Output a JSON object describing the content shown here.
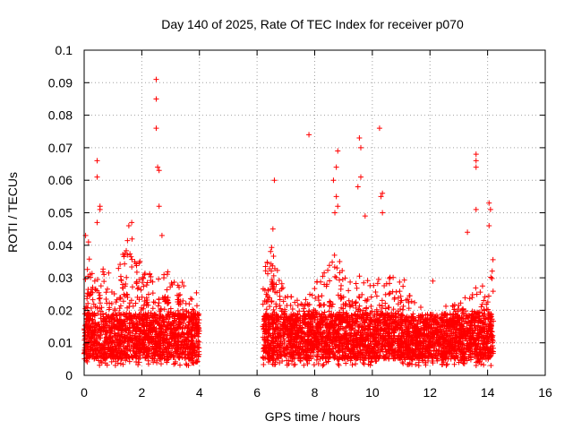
{
  "chart_data": {
    "type": "scatter",
    "title": "Day 140 of 2025, Rate Of TEC Index for receiver p070",
    "xlabel": "GPS time / hours",
    "ylabel": "ROTI / TECUs",
    "xlim": [
      0,
      16
    ],
    "ylim": [
      0,
      0.1
    ],
    "x_ticks": [
      "0",
      "2",
      "4",
      "6",
      "8",
      "10",
      "12",
      "14",
      "16"
    ],
    "y_ticks": [
      "0",
      "0.01",
      "0.02",
      "0.03",
      "0.04",
      "0.05",
      "0.06",
      "0.07",
      "0.08",
      "0.09",
      "0.1"
    ],
    "grid": true,
    "marker": "plus",
    "color": "#ff0000",
    "segments": [
      {
        "x_start": 0.0,
        "x_end": 4.0
      },
      {
        "x_start": 6.2,
        "x_end": 14.2
      }
    ],
    "envelope": [
      {
        "x": 0.0,
        "y": 0.03
      },
      {
        "x": 0.25,
        "y": 0.036
      },
      {
        "x": 0.5,
        "y": 0.035
      },
      {
        "x": 0.75,
        "y": 0.03
      },
      {
        "x": 1.0,
        "y": 0.031
      },
      {
        "x": 1.25,
        "y": 0.033
      },
      {
        "x": 1.5,
        "y": 0.04
      },
      {
        "x": 1.75,
        "y": 0.042
      },
      {
        "x": 2.0,
        "y": 0.032
      },
      {
        "x": 2.25,
        "y": 0.03
      },
      {
        "x": 2.5,
        "y": 0.032
      },
      {
        "x": 2.75,
        "y": 0.033
      },
      {
        "x": 3.0,
        "y": 0.03
      },
      {
        "x": 3.25,
        "y": 0.028
      },
      {
        "x": 3.5,
        "y": 0.027
      },
      {
        "x": 3.75,
        "y": 0.026
      },
      {
        "x": 4.0,
        "y": 0.024
      },
      {
        "x": 6.2,
        "y": 0.031
      },
      {
        "x": 6.5,
        "y": 0.04
      },
      {
        "x": 6.75,
        "y": 0.03
      },
      {
        "x": 7.0,
        "y": 0.024
      },
      {
        "x": 7.5,
        "y": 0.022
      },
      {
        "x": 8.0,
        "y": 0.027
      },
      {
        "x": 8.5,
        "y": 0.033
      },
      {
        "x": 8.75,
        "y": 0.036
      },
      {
        "x": 9.0,
        "y": 0.031
      },
      {
        "x": 9.5,
        "y": 0.03
      },
      {
        "x": 9.75,
        "y": 0.029
      },
      {
        "x": 10.0,
        "y": 0.028
      },
      {
        "x": 10.5,
        "y": 0.03
      },
      {
        "x": 10.75,
        "y": 0.029
      },
      {
        "x": 11.0,
        "y": 0.03
      },
      {
        "x": 11.5,
        "y": 0.022
      },
      {
        "x": 12.0,
        "y": 0.018
      },
      {
        "x": 12.5,
        "y": 0.02
      },
      {
        "x": 13.0,
        "y": 0.023
      },
      {
        "x": 13.5,
        "y": 0.025
      },
      {
        "x": 14.0,
        "y": 0.03
      },
      {
        "x": 14.2,
        "y": 0.035
      }
    ],
    "outliers": [
      {
        "x": 0.05,
        "y": 0.043
      },
      {
        "x": 0.15,
        "y": 0.041
      },
      {
        "x": 0.45,
        "y": 0.066
      },
      {
        "x": 0.45,
        "y": 0.061
      },
      {
        "x": 0.45,
        "y": 0.047
      },
      {
        "x": 0.55,
        "y": 0.052
      },
      {
        "x": 0.55,
        "y": 0.051
      },
      {
        "x": 1.55,
        "y": 0.046
      },
      {
        "x": 1.65,
        "y": 0.047
      },
      {
        "x": 2.5,
        "y": 0.091
      },
      {
        "x": 2.5,
        "y": 0.085
      },
      {
        "x": 2.5,
        "y": 0.076
      },
      {
        "x": 2.55,
        "y": 0.064
      },
      {
        "x": 2.6,
        "y": 0.063
      },
      {
        "x": 2.6,
        "y": 0.052
      },
      {
        "x": 2.7,
        "y": 0.043
      },
      {
        "x": 6.6,
        "y": 0.06
      },
      {
        "x": 6.55,
        "y": 0.045
      },
      {
        "x": 7.8,
        "y": 0.074
      },
      {
        "x": 8.8,
        "y": 0.069
      },
      {
        "x": 8.75,
        "y": 0.064
      },
      {
        "x": 8.65,
        "y": 0.06
      },
      {
        "x": 8.75,
        "y": 0.055
      },
      {
        "x": 8.8,
        "y": 0.052
      },
      {
        "x": 8.7,
        "y": 0.05
      },
      {
        "x": 9.55,
        "y": 0.073
      },
      {
        "x": 9.6,
        "y": 0.07
      },
      {
        "x": 9.6,
        "y": 0.061
      },
      {
        "x": 9.5,
        "y": 0.058
      },
      {
        "x": 9.75,
        "y": 0.049
      },
      {
        "x": 10.25,
        "y": 0.076
      },
      {
        "x": 10.35,
        "y": 0.056
      },
      {
        "x": 10.3,
        "y": 0.055
      },
      {
        "x": 10.35,
        "y": 0.05
      },
      {
        "x": 13.6,
        "y": 0.068
      },
      {
        "x": 13.6,
        "y": 0.066
      },
      {
        "x": 13.6,
        "y": 0.064
      },
      {
        "x": 13.6,
        "y": 0.051
      },
      {
        "x": 14.05,
        "y": 0.053
      },
      {
        "x": 14.1,
        "y": 0.051
      },
      {
        "x": 14.05,
        "y": 0.046
      },
      {
        "x": 13.3,
        "y": 0.044
      },
      {
        "x": 12.1,
        "y": 0.029
      }
    ],
    "baseline": {
      "min": 0.003,
      "typical": 0.01
    }
  }
}
